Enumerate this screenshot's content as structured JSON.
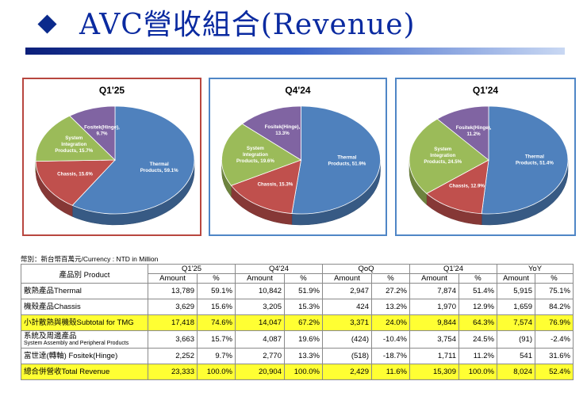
{
  "title": "AVC營收組合(Revenue)",
  "chart_data": [
    {
      "type": "pie",
      "title": "Q1'25",
      "slices": [
        {
          "label": "Thermal Products",
          "value": 59.1,
          "text": "Thermal\nProducts, 59.1%",
          "color": "#4f81bd"
        },
        {
          "label": "Chassis",
          "value": 15.6,
          "text": "Chassis, 15.6%",
          "color": "#c0504d"
        },
        {
          "label": "System Integration Products",
          "value": 15.7,
          "text": "System\nIntegration\nProducts, 15.7%",
          "color": "#9bbb59"
        },
        {
          "label": "Fositek(Hinge)",
          "value": 9.7,
          "text": "Fositek(Hinge),\n9.7%",
          "color": "#8064a2"
        }
      ]
    },
    {
      "type": "pie",
      "title": "Q4'24",
      "slices": [
        {
          "label": "Thermal Products",
          "value": 51.9,
          "text": "Thermal\nProducts, 51.9%",
          "color": "#4f81bd"
        },
        {
          "label": "Chassis",
          "value": 15.3,
          "text": "Chassis, 15.3%",
          "color": "#c0504d"
        },
        {
          "label": "System Integration Products",
          "value": 19.6,
          "text": "System\nIntegration\nProducts, 19.6%",
          "color": "#9bbb59"
        },
        {
          "label": "Fositek(Hinge)",
          "value": 13.3,
          "text": "Fositek(Hinge),\n13.3%",
          "color": "#8064a2"
        }
      ]
    },
    {
      "type": "pie",
      "title": "Q1'24",
      "slices": [
        {
          "label": "Thermal Products",
          "value": 51.4,
          "text": "Thermal\nProducts, 51.4%",
          "color": "#4f81bd"
        },
        {
          "label": "Chassis",
          "value": 12.9,
          "text": "Chassis, 12.9%",
          "color": "#c0504d"
        },
        {
          "label": "System Integration Products",
          "value": 24.5,
          "text": "System\nIntegration\nProducts, 24.5%",
          "color": "#9bbb59"
        },
        {
          "label": "Fositek(Hinge)",
          "value": 11.2,
          "text": "Fositek(Hinge),\n11.2%",
          "color": "#8064a2"
        }
      ]
    },
    {
      "type": "table",
      "unit_note": "幣別：新台幣百萬元/Currency : NTD  in Million",
      "product_header": "產品別 Product",
      "periods": [
        "Q1'25",
        "Q4'24",
        "QoQ",
        "Q1'24",
        "YoY"
      ],
      "subheaders": [
        "Amount",
        "%"
      ],
      "rows": [
        {
          "label": "散熱產品Thermal",
          "sub": "",
          "highlight": false,
          "cells": [
            "13,789",
            "59.1%",
            "10,842",
            "51.9%",
            "2,947",
            "27.2%",
            "7,874",
            "51.4%",
            "5,915",
            "75.1%"
          ]
        },
        {
          "label": "機殼產品Chassis",
          "sub": "",
          "highlight": false,
          "cells": [
            "3,629",
            "15.6%",
            "3,205",
            "15.3%",
            "424",
            "13.2%",
            "1,970",
            "12.9%",
            "1,659",
            "84.2%"
          ]
        },
        {
          "label": "小計散熱與機殼Subtotal for TMG",
          "sub": "",
          "highlight": true,
          "cells": [
            "17,418",
            "74.6%",
            "14,047",
            "67.2%",
            "3,371",
            "24.0%",
            "9,844",
            "64.3%",
            "7,574",
            "76.9%"
          ]
        },
        {
          "label": "系統及周邊產品",
          "sub": "System Assembly and Peripheral Products",
          "highlight": false,
          "cells": [
            "3,663",
            "15.7%",
            "4,087",
            "19.6%",
            "(424)",
            "-10.4%",
            "3,754",
            "24.5%",
            "(91)",
            "-2.4%"
          ]
        },
        {
          "label": "富世達(轉軸) Fositek(Hinge)",
          "sub": "",
          "highlight": false,
          "cells": [
            "2,252",
            "9.7%",
            "2,770",
            "13.3%",
            "(518)",
            "-18.7%",
            "1,711",
            "11.2%",
            "541",
            "31.6%"
          ]
        },
        {
          "label": "總合併營收Total Revenue",
          "sub": "",
          "highlight": true,
          "cells": [
            "23,333",
            "100.0%",
            "20,904",
            "100.0%",
            "2,429",
            "11.6%",
            "15,309",
            "100.0%",
            "8,024",
            "52.4%"
          ]
        }
      ]
    }
  ]
}
